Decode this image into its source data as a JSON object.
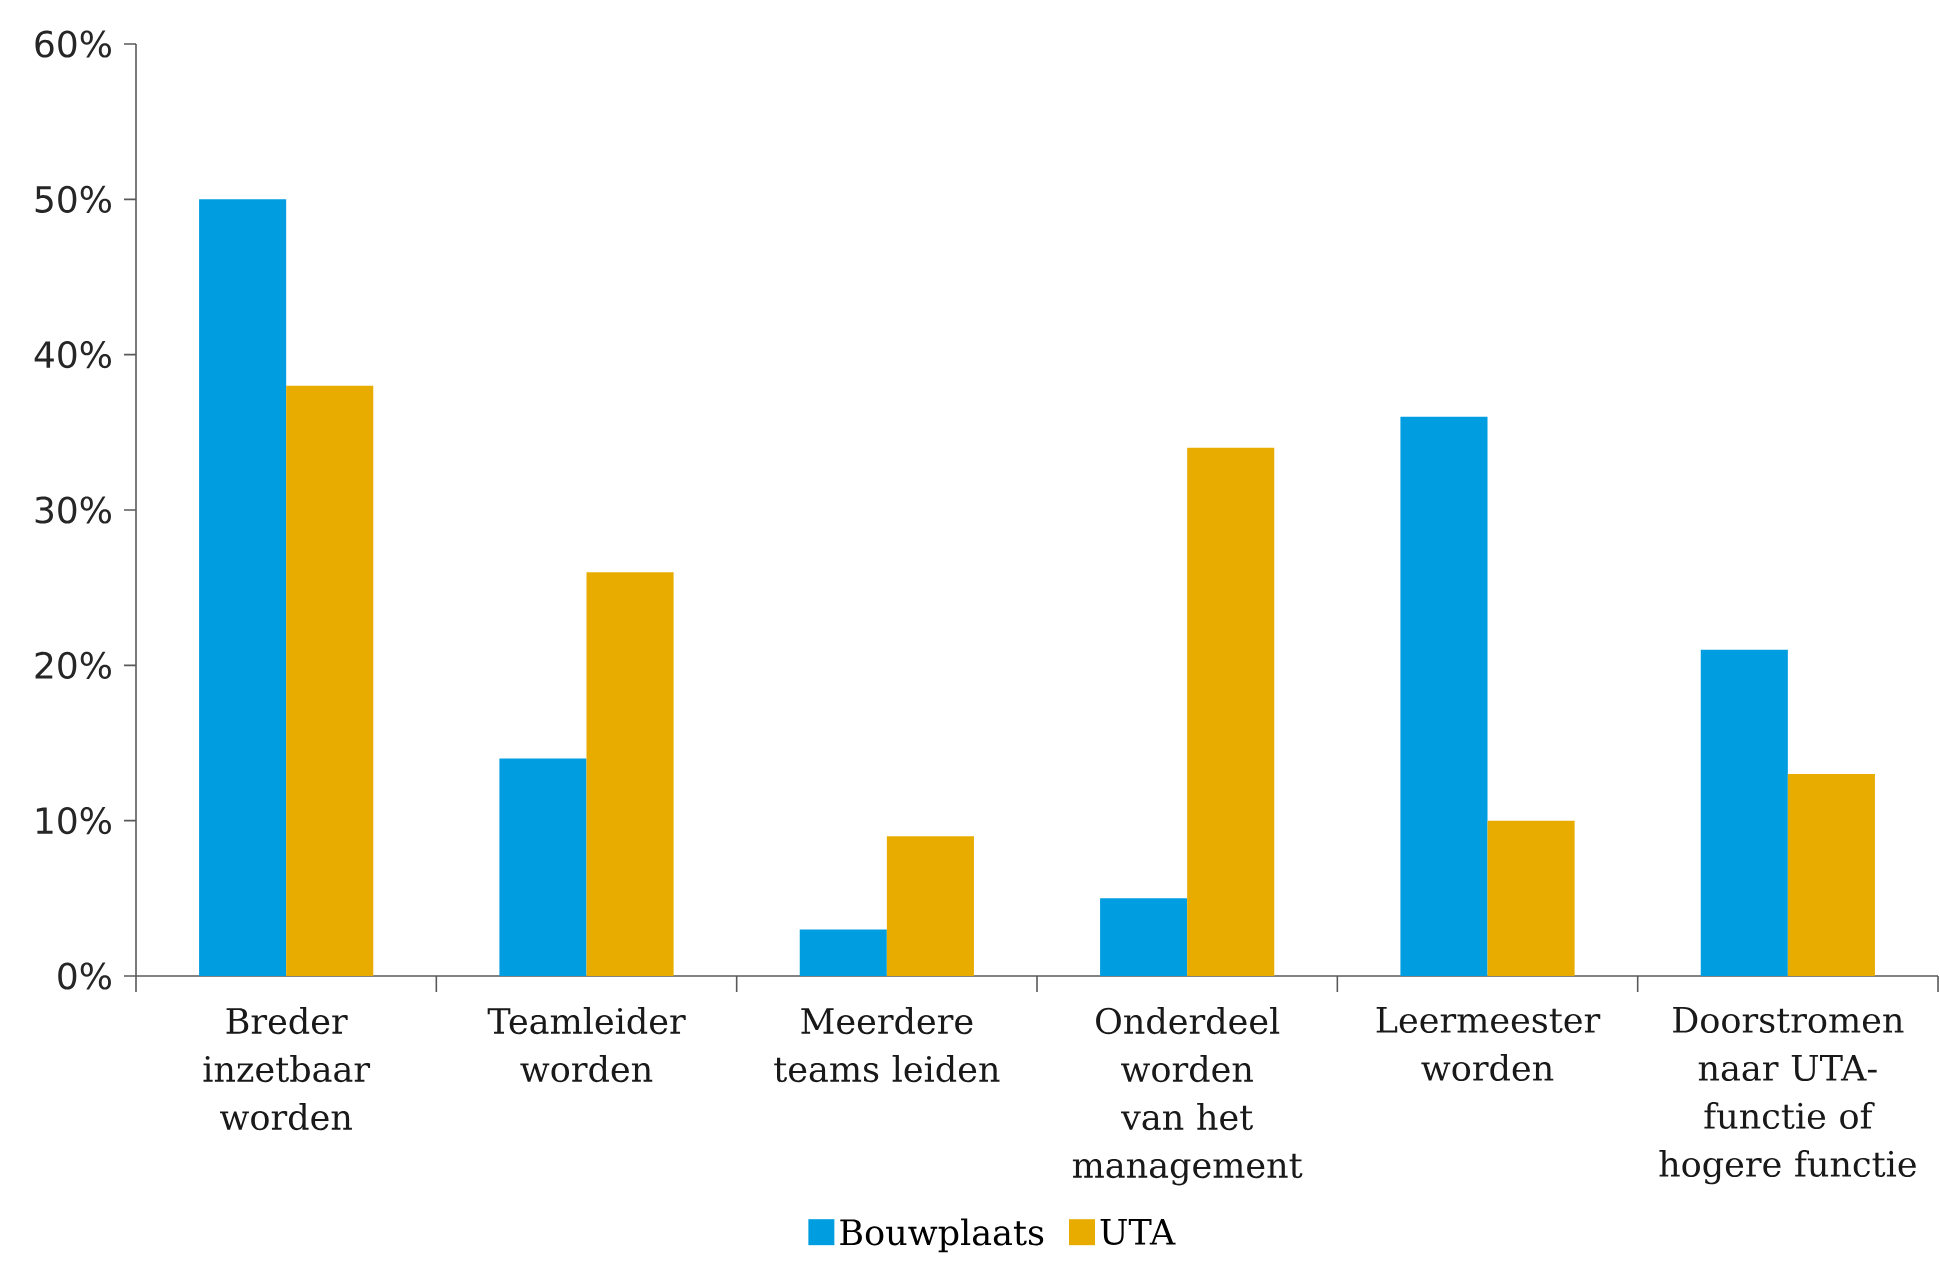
{
  "chart_data": {
    "type": "bar",
    "categories": [
      "Breder inzetbaar worden",
      "Teamleider worden",
      "Meerdere teams leiden",
      "Onderdeel worden van het management",
      "Leermeester worden",
      "Doorstromen naar UTA-functie of hogere functie"
    ],
    "series": [
      {
        "name": "Bouwplaats",
        "color": "#009ee0",
        "values": [
          50,
          14,
          3,
          5,
          36,
          21
        ]
      },
      {
        "name": "UTA",
        "color": "#e8ac00",
        "values": [
          38,
          26,
          9,
          34,
          10,
          13
        ]
      }
    ],
    "ylim": [
      0,
      60
    ],
    "yticks": [
      {
        "value": 0,
        "label": "0%"
      },
      {
        "value": 10,
        "label": "10%"
      },
      {
        "value": 20,
        "label": "20%"
      },
      {
        "value": 30,
        "label": "30%"
      },
      {
        "value": 40,
        "label": "40%"
      },
      {
        "value": 50,
        "label": "50%"
      },
      {
        "value": 60,
        "label": "60%"
      }
    ],
    "legend": "bottom"
  }
}
